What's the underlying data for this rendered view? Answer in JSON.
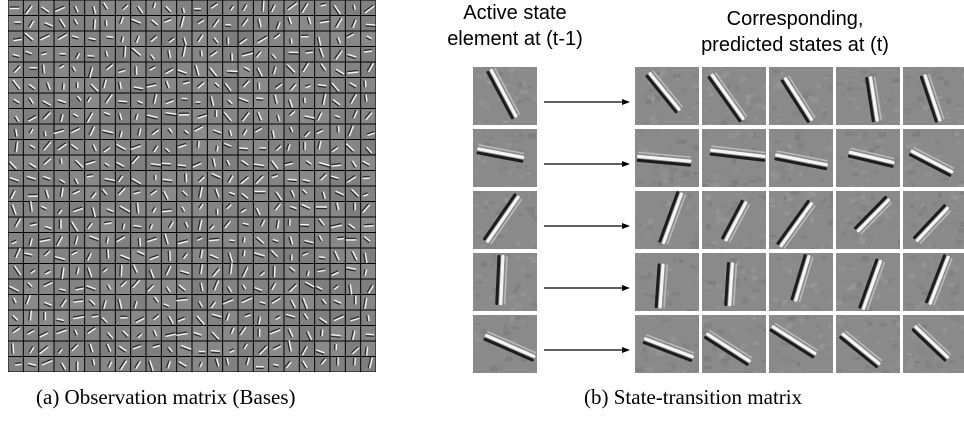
{
  "figure": {
    "panel_a": {
      "caption": "(a) Observation matrix (Bases)",
      "grid_rows": 24,
      "grid_cols": 24
    },
    "panel_b": {
      "caption": "(b) State-transition matrix",
      "left_header_line1": "Active state",
      "left_header_line2": "element at (t-1)",
      "right_header_line1": "Corresponding,",
      "right_header_line2": "predicted states at (t)",
      "rows": 5,
      "predicted_per_row": 5
    }
  }
}
